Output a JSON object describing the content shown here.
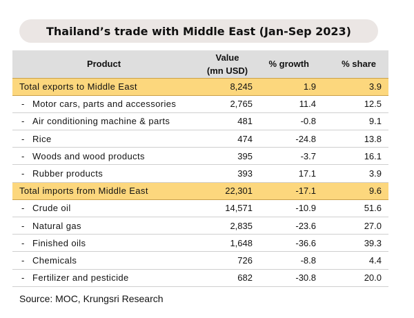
{
  "title": "Thailand’s trade with Middle East (Jan-Sep 2023)",
  "source": "Source: MOC, Krungsri Research",
  "chart_data": {
    "type": "table",
    "title": "Thailand’s trade with Middle East (Jan-Sep 2023)",
    "columns": {
      "product": "Product",
      "value_line1": "Value",
      "value_line2": "(mn USD)",
      "growth": "% growth",
      "share": "% share"
    },
    "rows": [
      {
        "kind": "total",
        "product": "Total exports to Middle East",
        "value": "8,245",
        "growth": "1.9",
        "share": "3.9"
      },
      {
        "kind": "item",
        "dash": "-",
        "product": "Motor cars, parts and accessories",
        "value": "2,765",
        "growth": "11.4",
        "share": "12.5"
      },
      {
        "kind": "item",
        "dash": "-",
        "product": "Air conditioning machine & parts",
        "value": "481",
        "growth": "-0.8",
        "share": "9.1"
      },
      {
        "kind": "item",
        "dash": "-",
        "product": "Rice",
        "value": "474",
        "growth": "-24.8",
        "share": "13.8"
      },
      {
        "kind": "item",
        "dash": "-",
        "product": "Woods and wood products",
        "value": "395",
        "growth": "-3.7",
        "share": "16.1"
      },
      {
        "kind": "item",
        "dash": "-",
        "product": "Rubber products",
        "value": "393",
        "growth": "17.1",
        "share": "3.9"
      },
      {
        "kind": "total",
        "product": "Total imports from Middle East",
        "value": "22,301",
        "growth": "-17.1",
        "share": "9.6"
      },
      {
        "kind": "item",
        "dash": "-",
        "product": "Crude oil",
        "value": "14,571",
        "growth": "-10.9",
        "share": "51.6"
      },
      {
        "kind": "item",
        "dash": "-",
        "product": "Natural gas",
        "value": "2,835",
        "growth": "-23.6",
        "share": "27.0"
      },
      {
        "kind": "item",
        "dash": "-",
        "product": "Finished oils",
        "value": "1,648",
        "growth": "-36.6",
        "share": "39.3"
      },
      {
        "kind": "item",
        "dash": "-",
        "product": "Chemicals",
        "value": "726",
        "growth": "-8.8",
        "share": "4.4"
      },
      {
        "kind": "item",
        "dash": "-",
        "product": "Fertilizer and pesticide",
        "value": "682",
        "growth": "-30.8",
        "share": "20.0"
      }
    ]
  },
  "colors": {
    "title_background": "#ebe6e4",
    "header_background": "#dedede",
    "total_row_background": "#fcd77d"
  }
}
